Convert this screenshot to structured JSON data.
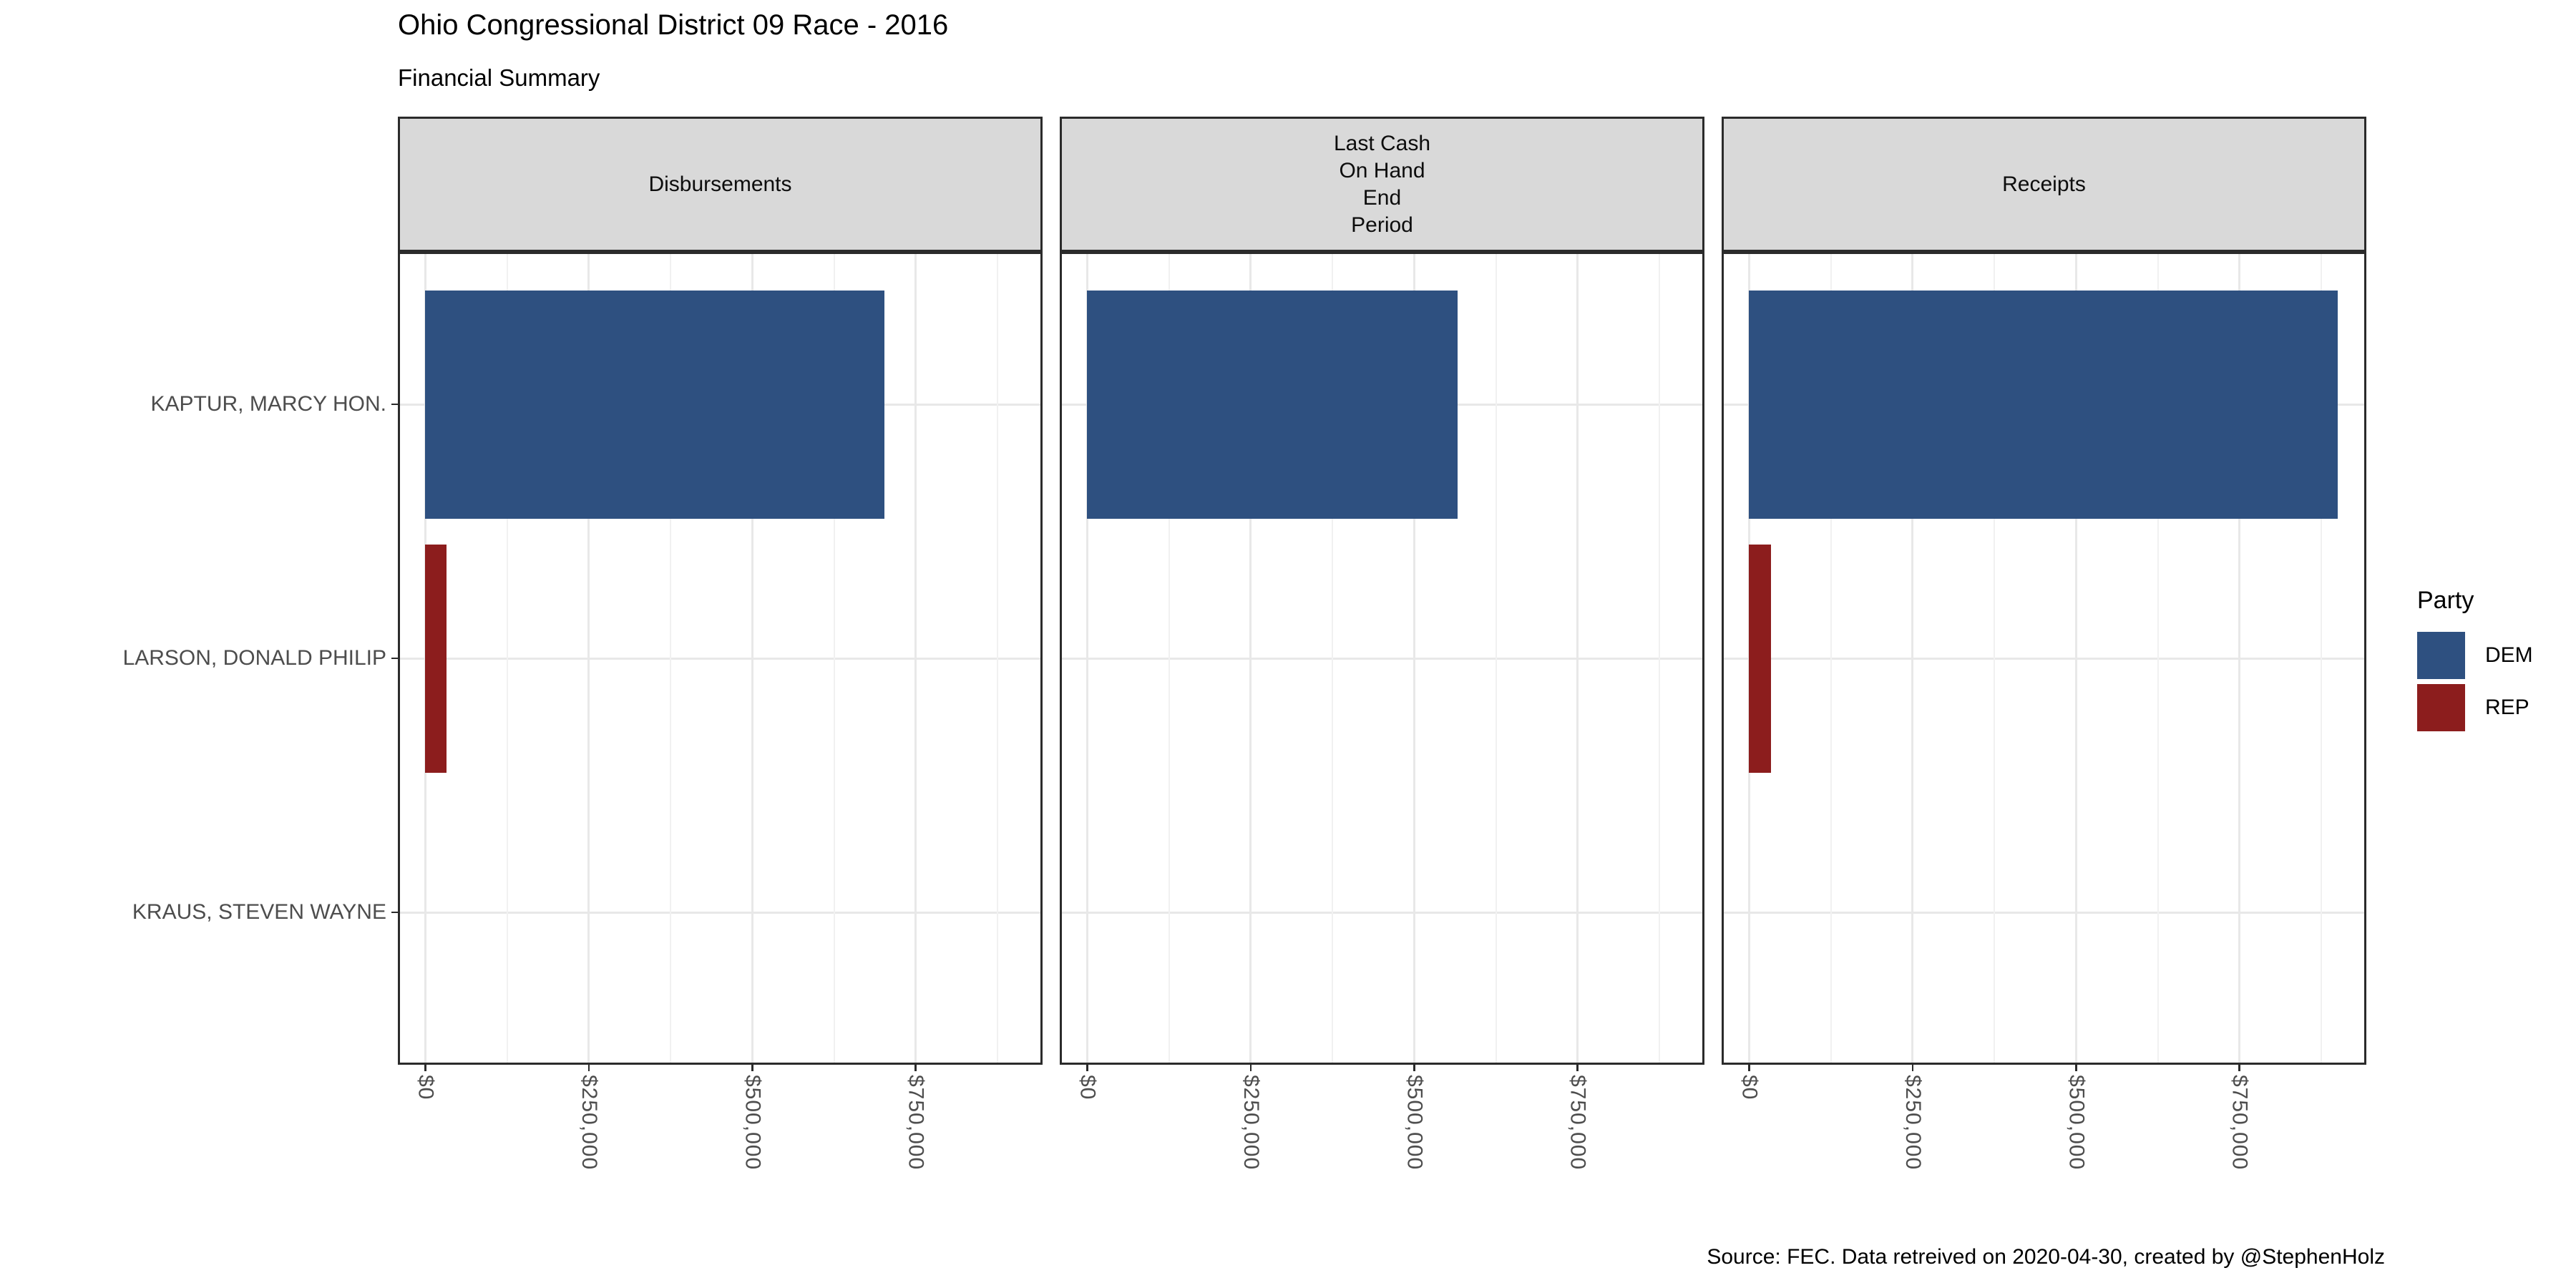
{
  "title": "Ohio Congressional District 09 Race - 2016",
  "subtitle": "Financial Summary",
  "caption": "Source: FEC. Data retreived on 2020-04-30, created by @StephenHolz",
  "legend": {
    "title": "Party",
    "position": "right",
    "items": [
      {
        "label": "DEM",
        "color": "#2E5080"
      },
      {
        "label": "REP",
        "color": "#8C1D1D"
      }
    ]
  },
  "chart_data": {
    "type": "bar",
    "orientation": "horizontal",
    "title": "Ohio Congressional District 09 Race - 2016",
    "subtitle": "Financial Summary",
    "facets": [
      "Disbursements",
      "Last Cash\nOn Hand\nEnd\nPeriod",
      "Receipts"
    ],
    "categories": [
      "KAPTUR, MARCY HON.",
      "LARSON, DONALD PHILIP",
      "KRAUS, STEVEN WAYNE"
    ],
    "series": [
      {
        "name": "KAPTUR, MARCY HON.",
        "party": "DEM",
        "values": [
          702000,
          567000,
          900000
        ]
      },
      {
        "name": "LARSON, DONALD PHILIP",
        "party": "REP",
        "values": [
          32500,
          0,
          33000
        ]
      },
      {
        "name": "KRAUS, STEVEN WAYNE",
        "party": null,
        "values": [
          0,
          0,
          0
        ]
      }
    ],
    "x_ticks": [
      {
        "label": "$0",
        "value": 0
      },
      {
        "label": "$250,000",
        "value": 250000
      },
      {
        "label": "$500,000",
        "value": 500000
      },
      {
        "label": "$750,000",
        "value": 750000
      }
    ],
    "xlim": [
      -42000,
      944000
    ],
    "minor_tick_interval": 125000,
    "grid": {
      "major": true,
      "minor": true
    },
    "legend_position": "right",
    "strip_fill": "#D9D9D9",
    "grid_major_color": "#E8E8E8",
    "grid_minor_color": "#F1F1F1",
    "axis_text_color": "#4D4D4D",
    "panel_border_color": "#2B2B2B"
  }
}
